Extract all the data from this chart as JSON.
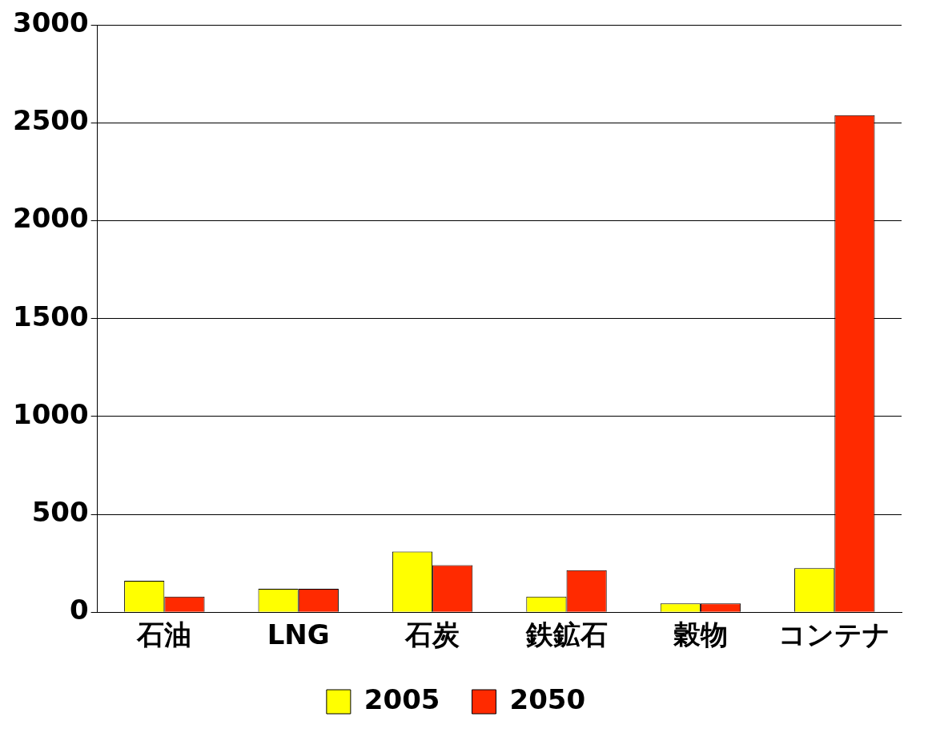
{
  "chart_data": {
    "type": "bar",
    "categories": [
      "石油",
      "LNG",
      "石炭",
      "鉄鉱石",
      "穀物",
      "コンテナ"
    ],
    "series": [
      {
        "name": "2005",
        "color": "#ffff00",
        "values": [
          160,
          120,
          310,
          80,
          45,
          225
        ]
      },
      {
        "name": "2050",
        "color": "#ff2a00",
        "values": [
          80,
          120,
          240,
          215,
          45,
          2540
        ]
      }
    ],
    "ylim": [
      0,
      3000
    ],
    "yticks": [
      0,
      500,
      1000,
      1500,
      2000,
      2500,
      3000
    ],
    "grid": "y",
    "legend": "bottom"
  }
}
